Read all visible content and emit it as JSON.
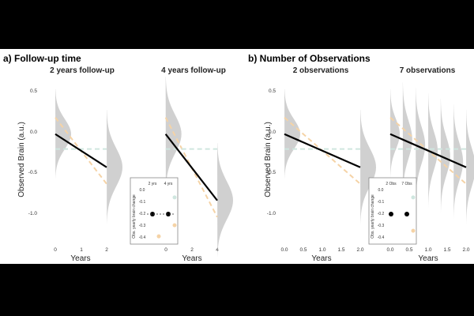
{
  "panels": [
    {
      "title": "a) Follow-up time",
      "ylabel": "Observed Brain (a.u.)",
      "inset": {
        "col_labels": [
          "2 yrs",
          "4 yrs"
        ],
        "ylabel": "Obs. yearly brain change",
        "yticks": [
          "0.0",
          "-0.1",
          "-0.2",
          "-0.3",
          "-0.4"
        ]
      },
      "subplots": [
        {
          "title": "2 years follow-up",
          "xlabel": "Years",
          "xticks": [
            "0",
            "1",
            "2"
          ],
          "yticks": [
            "0.5",
            "0.0",
            "-0.5",
            "-1.0"
          ]
        },
        {
          "title": "4 years follow-up",
          "xlabel": "Years",
          "xticks": [
            "0",
            "2",
            "4"
          ],
          "yticks": []
        }
      ]
    },
    {
      "title": "b) Number of Observations",
      "ylabel": "Observed Brain (a.u.)",
      "inset": {
        "col_labels": [
          "2 Obs",
          "7 Obs"
        ],
        "ylabel": "Obs. yearly brain change",
        "yticks": [
          "0.0",
          "-0.1",
          "-0.2",
          "-0.3",
          "-0.4"
        ]
      },
      "subplots": [
        {
          "title": "2 observations",
          "xlabel": "Years",
          "xticks": [
            "0.0",
            "0.5",
            "1.0",
            "1.5",
            "2.0"
          ],
          "yticks": [
            "0.5",
            "0.0",
            "-0.5",
            "-1.0"
          ]
        },
        {
          "title": "7 observations",
          "xlabel": "Years",
          "xticks": [
            "0.0",
            "0.5",
            "1.0",
            "1.5",
            "2.0"
          ],
          "yticks": []
        }
      ]
    }
  ],
  "colors": {
    "mean_line": "#000000",
    "density": "#c8c8c8",
    "dash_orange": "#f5d3a6",
    "dash_teal": "#cfe6df",
    "inset_black": "#000000"
  },
  "chart_data": [
    {
      "type": "line",
      "title": "2 years follow-up",
      "xlabel": "Years",
      "ylabel": "Observed Brain (a.u.)",
      "xlim": [
        0,
        2
      ],
      "ylim": [
        -1.05,
        0.55
      ],
      "x_ticks": [
        0,
        1,
        2
      ],
      "y_ticks": [
        0.5,
        0.0,
        -0.5,
        -1.0
      ],
      "density_at_x": [
        0,
        2
      ],
      "series": [
        {
          "style": "solid",
          "x": [
            0,
            2
          ],
          "y": [
            0.0,
            -0.4
          ]
        },
        {
          "style": "dashed",
          "x": [
            0,
            2
          ],
          "y": [
            0.2,
            -0.6
          ]
        },
        {
          "style": "dashed",
          "x": [
            0,
            2
          ],
          "y": [
            -0.18,
            -0.18
          ]
        }
      ]
    },
    {
      "type": "line",
      "title": "4 years follow-up",
      "xlabel": "Years",
      "xlim": [
        -2,
        4
      ],
      "ylim": [
        -1.05,
        0.55
      ],
      "x_ticks": [
        0,
        2,
        4
      ],
      "density_at_x": [
        0,
        4
      ],
      "series": [
        {
          "style": "solid",
          "x": [
            0,
            4
          ],
          "y": [
            0.0,
            -0.8
          ]
        },
        {
          "style": "dashed",
          "x": [
            0,
            4
          ],
          "y": [
            0.2,
            -1.0
          ]
        },
        {
          "style": "dashed",
          "x": [
            0,
            4
          ],
          "y": [
            -0.18,
            -0.18
          ]
        }
      ]
    },
    {
      "type": "line",
      "title": "2 observations",
      "xlabel": "Years",
      "ylabel": "Observed Brain (a.u.)",
      "xlim": [
        0,
        2
      ],
      "ylim": [
        -1.05,
        0.55
      ],
      "x_ticks": [
        0.0,
        0.5,
        1.0,
        1.5,
        2.0
      ],
      "y_ticks": [
        0.5,
        0.0,
        -0.5,
        -1.0
      ],
      "density_at_x": [
        0,
        2
      ],
      "series": [
        {
          "style": "solid",
          "x": [
            0,
            2
          ],
          "y": [
            0.0,
            -0.4
          ]
        },
        {
          "style": "dashed",
          "x": [
            0,
            2
          ],
          "y": [
            0.2,
            -0.6
          ]
        },
        {
          "style": "dashed",
          "x": [
            0,
            2
          ],
          "y": [
            -0.18,
            -0.18
          ]
        }
      ]
    },
    {
      "type": "line",
      "title": "7 observations",
      "xlabel": "Years",
      "xlim": [
        0,
        2
      ],
      "ylim": [
        -1.05,
        0.55
      ],
      "x_ticks": [
        0.0,
        0.5,
        1.0,
        1.5,
        2.0
      ],
      "density_at_x": [
        0,
        0.33,
        0.67,
        1.0,
        1.33,
        1.67,
        2.0
      ],
      "series": [
        {
          "style": "solid",
          "x": [
            0,
            2
          ],
          "y": [
            0.0,
            -0.4
          ]
        },
        {
          "style": "dashed",
          "x": [
            0,
            2
          ],
          "y": [
            0.2,
            -0.6
          ]
        },
        {
          "style": "dashed",
          "x": [
            0,
            2
          ],
          "y": [
            -0.18,
            -0.18
          ]
        }
      ]
    },
    {
      "type": "scatter",
      "title": "",
      "ylabel": "Obs. yearly brain change",
      "categories": [
        "2 yrs",
        "4 yrs"
      ],
      "ylim": [
        -0.42,
        0.02
      ],
      "series": [
        {
          "style": "black",
          "x": [
            0,
            1
          ],
          "y": [
            -0.2,
            -0.2
          ]
        },
        {
          "style": "teal",
          "x": [
            1
          ],
          "y": [
            -0.05
          ]
        },
        {
          "style": "orange",
          "x": [
            0,
            1
          ],
          "y": [
            -0.4,
            -0.3
          ]
        }
      ]
    },
    {
      "type": "scatter",
      "title": "",
      "ylabel": "Obs. yearly brain change",
      "categories": [
        "2 Obs",
        "7 Obs"
      ],
      "ylim": [
        -0.42,
        0.02
      ],
      "series": [
        {
          "style": "black",
          "x": [
            0,
            1
          ],
          "y": [
            -0.2,
            -0.2
          ]
        },
        {
          "style": "teal",
          "x": [
            1
          ],
          "y": [
            -0.05
          ]
        },
        {
          "style": "orange",
          "x": [
            1
          ],
          "y": [
            -0.35
          ]
        }
      ]
    }
  ]
}
